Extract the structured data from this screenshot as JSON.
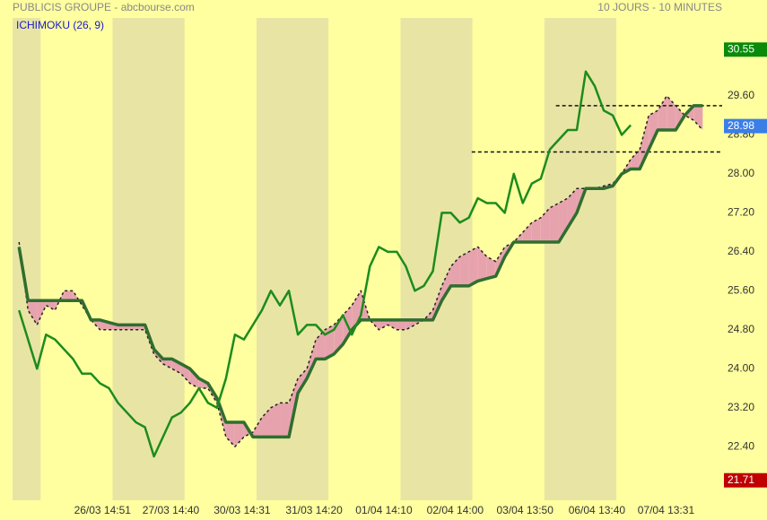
{
  "chart_data": {
    "type": "ichimoku",
    "title": "PUBLICIS GROUPE - abcbourse.com",
    "subtitle": "10 JOURS - 10 MINUTES",
    "indicator": "ICHIMOKU (26, 9)",
    "xlim": [
      -0.39,
      9.47
    ],
    "ylim": [
      21.3,
      31.2
    ],
    "xticks": [
      {
        "value": 0.86,
        "label": "26/03 14:51"
      },
      {
        "value": 1.81,
        "label": "27/03 14:40"
      },
      {
        "value": 2.8,
        "label": "30/03 14:31"
      },
      {
        "value": 3.8,
        "label": "31/03 14:20"
      },
      {
        "value": 4.77,
        "label": "01/04 14:10"
      },
      {
        "value": 5.76,
        "label": "02/04 14:00"
      },
      {
        "value": 6.73,
        "label": "03/04 13:50"
      },
      {
        "value": 7.73,
        "label": "06/04 13:40"
      },
      {
        "value": 8.69,
        "label": "07/04 13:31"
      }
    ],
    "yticks": [
      {
        "value": 22.4,
        "label": "22.40"
      },
      {
        "value": 23.2,
        "label": "23.20"
      },
      {
        "value": 24,
        "label": "24.00"
      },
      {
        "value": 24.8,
        "label": "24.80"
      },
      {
        "value": 25.6,
        "label": "25.60"
      },
      {
        "value": 26.4,
        "label": "26.40"
      },
      {
        "value": 27.2,
        "label": "27.20"
      },
      {
        "value": 28,
        "label": "28.00"
      },
      {
        "value": 28.8,
        "label": "28.80"
      },
      {
        "value": 29.6,
        "label": "29.60"
      }
    ],
    "markers": [
      {
        "value": 30.55,
        "color": "#0a8a0a"
      },
      {
        "value": 28.98,
        "color": "#3a7ee8"
      },
      {
        "value": 21.71,
        "color": "#c00000"
      }
    ],
    "bands": [
      [
        -0.39,
        0
      ],
      [
        1,
        2
      ],
      [
        3,
        4
      ],
      [
        5,
        6
      ],
      [
        7,
        8
      ]
    ],
    "levels": [
      {
        "value": 29.4,
        "from": 7.16
      },
      {
        "value": 28.45,
        "from": 5.99
      }
    ],
    "cloud_color": "#e7a3ad",
    "x": [
      -0.3,
      -0.175,
      -0.05,
      0.075,
      0.2,
      0.325,
      0.45,
      0.575,
      0.7,
      0.825,
      0.95,
      1.075,
      1.2,
      1.325,
      1.45,
      1.575,
      1.7,
      1.825,
      1.95,
      2.075,
      2.2,
      2.325,
      2.45,
      2.575,
      2.7,
      2.825,
      2.95,
      3.075,
      3.2,
      3.325,
      3.45,
      3.575,
      3.7,
      3.825,
      3.95,
      4.075,
      4.2,
      4.325,
      4.45,
      4.575,
      4.7,
      4.825,
      4.95,
      5.075,
      5.2,
      5.325,
      5.45,
      5.575,
      5.7,
      5.825,
      5.95,
      6.075,
      6.2,
      6.325,
      6.45,
      6.575,
      6.7,
      6.825,
      6.95,
      7.075,
      7.2,
      7.325,
      7.45,
      7.575,
      7.7,
      7.825,
      7.95,
      8.075,
      8.2,
      8.325,
      8.45,
      8.575,
      8.7,
      8.825,
      8.95,
      9.075,
      9.2
    ],
    "series": [
      {
        "color": "#1c8c1c",
        "width": 2.5,
        "values": [
          25.2,
          24.6,
          24.0,
          24.7,
          24.6,
          24.4,
          24.2,
          23.9,
          23.9,
          23.7,
          23.6,
          23.3,
          23.1,
          22.9,
          22.8,
          22.2,
          22.6,
          23.0,
          23.1,
          23.3,
          23.6,
          23.3,
          23.2,
          23.8,
          24.7,
          24.6,
          24.9,
          25.2,
          25.6,
          25.3,
          25.6,
          24.7,
          24.9,
          24.9,
          24.7,
          24.8,
          25.1,
          24.7,
          25.1,
          26.1,
          26.5,
          26.4,
          26.4,
          26.1,
          25.6,
          25.7,
          26.0,
          27.2,
          27.2,
          27.0,
          27.1,
          27.5,
          27.4,
          27.4,
          27.2,
          28.0,
          27.4,
          27.8,
          27.9,
          28.5,
          28.7,
          28.9,
          28.9,
          30.1,
          29.8,
          29.3,
          29.2,
          28.8,
          29.0,
          null,
          null,
          null,
          null,
          null,
          null,
          null,
          null
        ]
      },
      {
        "color": "#2f6e2f",
        "width": 3.5,
        "values": [
          26.5,
          25.4,
          25.4,
          25.4,
          25.4,
          25.4,
          25.4,
          25.4,
          25.0,
          25.0,
          24.95,
          24.9,
          24.9,
          24.9,
          24.9,
          24.4,
          24.2,
          24.2,
          24.1,
          24.0,
          23.8,
          23.7,
          23.4,
          22.9,
          22.9,
          22.9,
          22.6,
          22.6,
          22.6,
          22.6,
          22.6,
          23.5,
          23.8,
          24.2,
          24.2,
          24.3,
          24.5,
          24.8,
          25.0,
          25.0,
          25.0,
          25.0,
          25.0,
          25.0,
          25.0,
          25.0,
          25.0,
          25.4,
          25.7,
          25.7,
          25.7,
          25.8,
          25.85,
          25.9,
          26.3,
          26.6,
          26.6,
          26.6,
          26.6,
          26.6,
          26.6,
          26.9,
          27.2,
          27.7,
          27.7,
          27.7,
          27.75,
          28.0,
          28.1,
          28.1,
          28.5,
          28.9,
          28.9,
          28.9,
          29.2,
          29.4,
          29.4
        ]
      },
      {
        "color": "#222222",
        "width": 1.5,
        "dashed": true,
        "values": [
          26.6,
          25.2,
          24.9,
          25.3,
          25.2,
          25.6,
          25.6,
          25.3,
          25.0,
          24.8,
          24.8,
          24.8,
          24.8,
          24.8,
          24.8,
          24.3,
          24.1,
          24.0,
          23.9,
          23.7,
          23.6,
          23.6,
          23.3,
          22.6,
          22.4,
          22.6,
          22.7,
          23.0,
          23.2,
          23.3,
          23.3,
          23.8,
          24.0,
          24.6,
          24.8,
          24.9,
          25.1,
          25.3,
          25.6,
          25.0,
          24.8,
          24.9,
          24.8,
          24.8,
          24.9,
          25.0,
          25.2,
          25.7,
          26.1,
          26.3,
          26.4,
          26.5,
          26.3,
          26.2,
          26.5,
          26.6,
          26.8,
          27.0,
          27.1,
          27.3,
          27.4,
          27.5,
          27.7,
          27.7,
          27.7,
          27.75,
          27.8,
          28.0,
          28.3,
          28.5,
          29.2,
          29.3,
          29.6,
          29.4,
          29.2,
          29.1,
          28.9
        ]
      }
    ]
  }
}
